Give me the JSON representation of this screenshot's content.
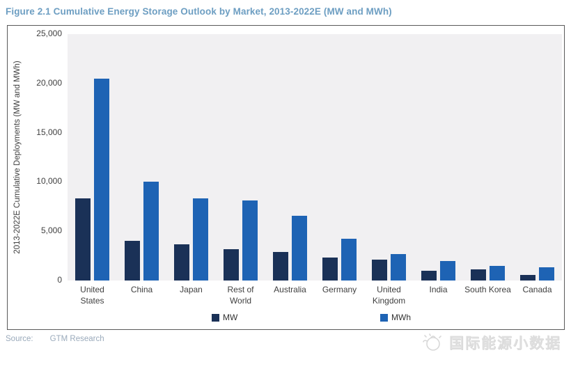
{
  "figure": {
    "title": "Figure 2.1  Cumulative Energy Storage Outlook by Market, 2013-2022E (MW and MWh)",
    "source_label": "Source:",
    "source_value": "GTM Research",
    "watermark_text": "国际能源小数据"
  },
  "colors": {
    "mw_bar": "#1a3157",
    "mwh_bar": "#1e63b4",
    "plot_background": "#f1f0f2",
    "title_blue": "#6d9ec2",
    "source_gray_blue": "#9aaabb"
  },
  "chart_data": {
    "type": "bar",
    "title": "",
    "categories": [
      "United States",
      "China",
      "Japan",
      "Rest of World",
      "Australia",
      "Germany",
      "United Kingdom",
      "India",
      "South Korea",
      "Canada"
    ],
    "series": [
      {
        "name": "MW",
        "color": "#1a3157",
        "values": [
          8300,
          4000,
          3650,
          3200,
          2900,
          2350,
          2100,
          1000,
          1150,
          600
        ]
      },
      {
        "name": "MWh",
        "color": "#1e63b4",
        "values": [
          20500,
          10000,
          8350,
          8150,
          6600,
          4250,
          2650,
          2000,
          1500,
          1350
        ]
      }
    ],
    "xlabel": "",
    "ylabel": "2013-2022E Cumulative Deployments (MW and MWh)",
    "ylim": [
      0,
      25000
    ],
    "ytick_interval": 5000,
    "yticks": [
      "0",
      "5,000",
      "10,000",
      "15,000",
      "20,000",
      "25,000"
    ],
    "grid": false,
    "legend_position": "bottom",
    "legend_entries": [
      "MW",
      "MWh"
    ]
  }
}
